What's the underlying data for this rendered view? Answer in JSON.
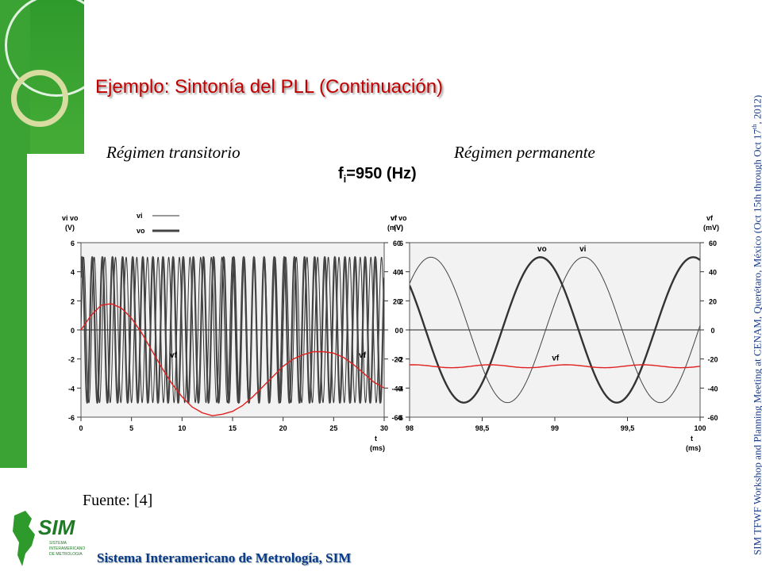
{
  "slide": {
    "title": "Ejemplo: Sintonía del PLL (Continuación)",
    "subtitle_left": "Régimen transitorio",
    "subtitle_right": "Régimen permanente",
    "fi_label": "f",
    "fi_sub": "i",
    "fi_value": "=950 (Hz)",
    "source": "Fuente: [4]",
    "footer": "Sistema Interamericano de Metrología, SIM",
    "side_text_a": "SIM TFWF Workshop and Planning Meeting at CENAM, Querétaro, México (Oct 15th through Oct 17",
    "side_text_sup": "th",
    "side_text_b": ", 2012)",
    "logo_text": "SIM",
    "logo_small": [
      "SISTEMA",
      "INTERAMERICANO",
      "DE METROLOGIA"
    ]
  },
  "colors": {
    "title": "#c00000",
    "vf_trace": "#e02020",
    "vio_trace": "#333333",
    "footer": "#0a3a8a",
    "green": "#3aa334"
  },
  "chart_data": [
    {
      "type": "line",
      "title": "Régimen transitorio",
      "xlabel": "t (ms)",
      "ylabel_left": "vi vo (V)",
      "ylabel_right": "vf (mV)",
      "xlim": [
        0,
        30
      ],
      "ylim_left": [
        -6,
        6
      ],
      "ylim_right": [
        -60,
        60
      ],
      "x_ticks": [
        "0",
        "5",
        "10",
        "15",
        "20",
        "25",
        "30"
      ],
      "y_ticks_left": [
        "6",
        "4",
        "2",
        "0",
        "-2",
        "-4",
        "-6"
      ],
      "y_ticks_right": [
        "60",
        "40",
        "20",
        "0",
        "-20",
        "-40",
        "-60"
      ],
      "legend": [
        {
          "label": "vi",
          "style": "thin"
        },
        {
          "label": "vo",
          "style": "thick"
        }
      ],
      "series": [
        {
          "name": "vi",
          "axis": "left",
          "freq_khz": 0.95,
          "amplitude": 5
        },
        {
          "name": "vo",
          "axis": "left",
          "freq_khz": 1.0,
          "amplitude": 5
        },
        {
          "name": "vf",
          "axis": "right",
          "x": [
            0,
            1,
            2,
            3,
            4,
            5,
            6,
            7,
            8,
            9,
            10,
            11,
            12,
            13,
            14,
            15,
            16,
            17,
            18,
            19,
            20,
            21,
            22,
            23,
            24,
            25,
            26,
            27,
            28,
            29,
            30
          ],
          "y": [
            0,
            10,
            17,
            18,
            15,
            8,
            -2,
            -14,
            -26,
            -37,
            -46,
            -53,
            -57,
            -59,
            -58,
            -56,
            -52,
            -46,
            -39,
            -32,
            -25,
            -20,
            -17,
            -15,
            -15,
            -16,
            -19,
            -24,
            -30,
            -36,
            -40
          ]
        }
      ],
      "annotations": [
        "vf",
        "vf"
      ]
    },
    {
      "type": "line",
      "title": "Régimen permanente",
      "xlabel": "t (ms)",
      "ylabel_left": "vi vo (V)",
      "ylabel_right": "vf (mV)",
      "xlim": [
        98,
        100
      ],
      "ylim_left": [
        -6,
        6
      ],
      "ylim_right": [
        -60,
        60
      ],
      "x_ticks": [
        "98",
        "98,5",
        "99",
        "99,5",
        "100"
      ],
      "y_ticks_left": [
        "6",
        "4",
        "2",
        "0",
        "-2",
        "-4",
        "-6"
      ],
      "y_ticks_right": [
        "60",
        "40",
        "20",
        "0",
        "-20",
        "-40",
        "-60"
      ],
      "series": [
        {
          "name": "vi",
          "axis": "left",
          "freq_khz": 0.95,
          "amplitude": 5,
          "peak_at_ms": 99.2
        },
        {
          "name": "vo",
          "axis": "left",
          "freq_khz": 0.95,
          "amplitude": 5,
          "peak_at_ms": 98.9
        },
        {
          "name": "vf",
          "axis": "right",
          "mean": -25,
          "ripple": 1
        }
      ],
      "annotations": [
        "vo",
        "vi",
        "vf"
      ]
    }
  ]
}
